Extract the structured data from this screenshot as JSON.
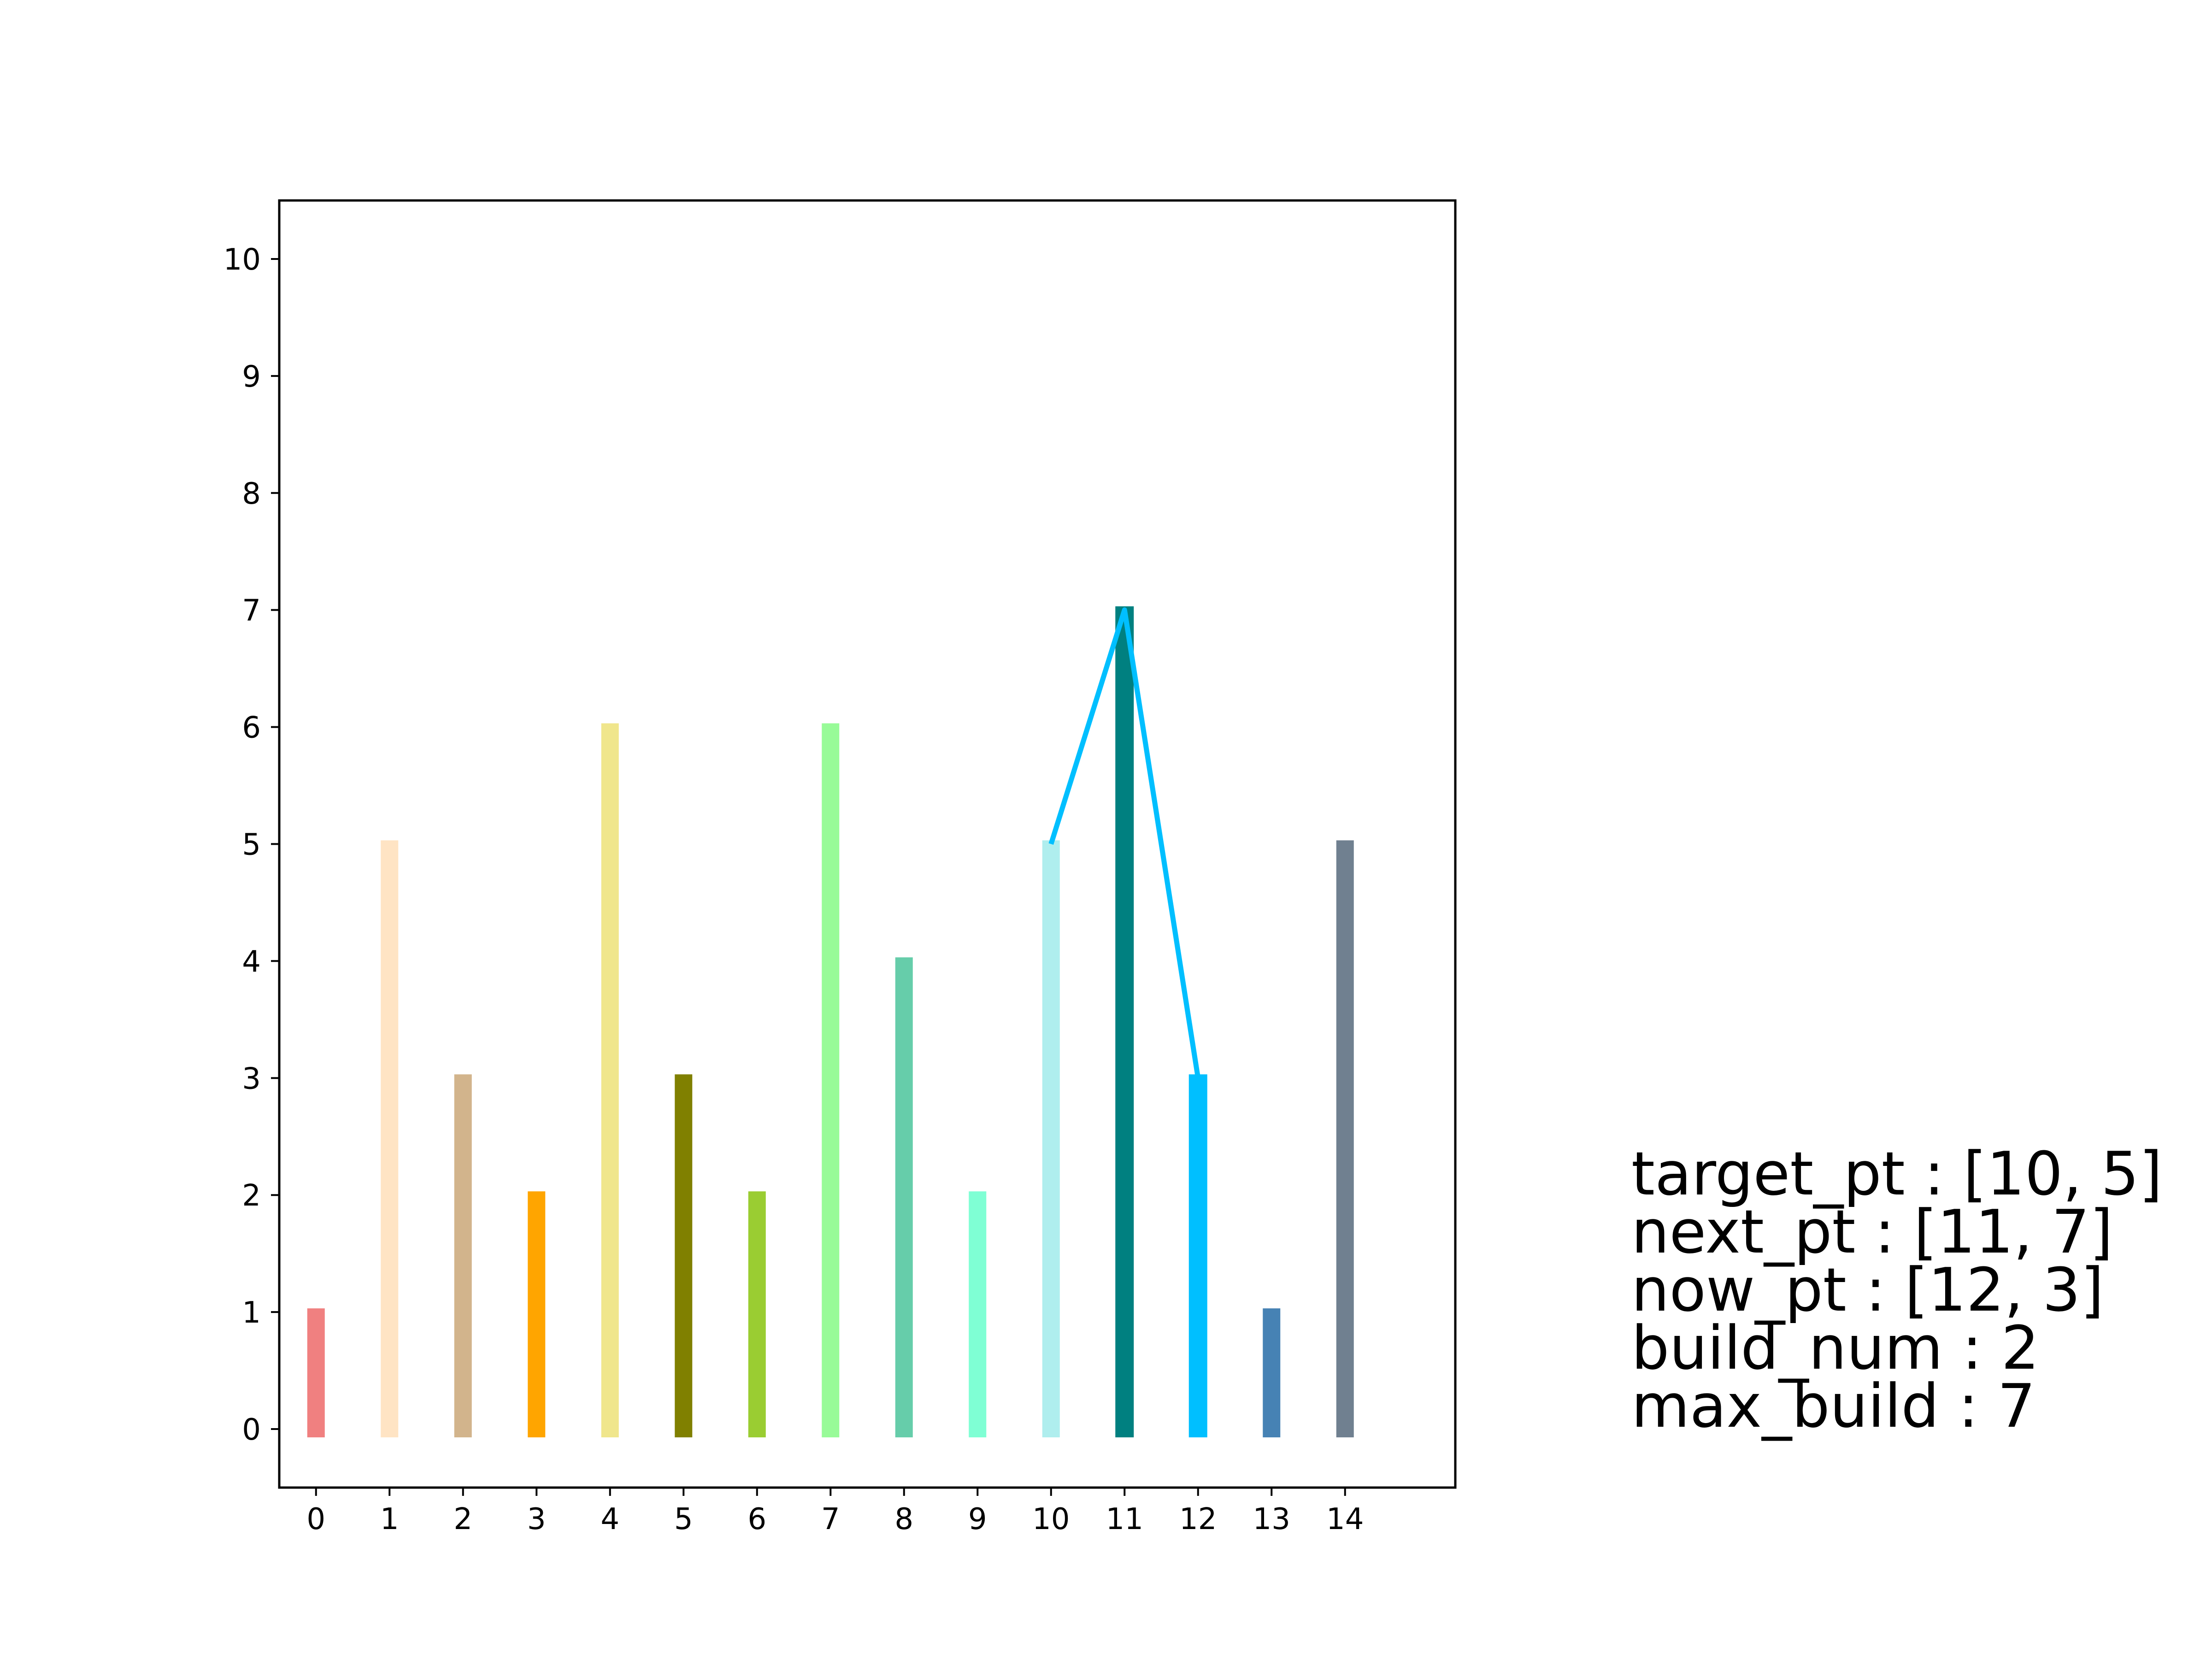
{
  "chart_data": {
    "type": "bar",
    "title": "",
    "xlabel": "",
    "ylabel": "",
    "categories": [
      "0",
      "1",
      "2",
      "3",
      "4",
      "5",
      "6",
      "7",
      "8",
      "9",
      "10",
      "11",
      "12",
      "13",
      "14"
    ],
    "values": [
      1,
      5,
      3,
      2,
      6,
      3,
      2,
      6,
      4,
      2,
      5,
      7,
      3,
      1,
      5
    ],
    "bar_colors": [
      "#f08080",
      "#ffe4c4",
      "#d2b48c",
      "#ffa500",
      "#f0e68c",
      "#808000",
      "#9acd32",
      "#98fb98",
      "#66cdaa",
      "#7fffd4",
      "#afeeee",
      "#008080",
      "#00bfff",
      "#4682b4",
      "#708090"
    ],
    "emphasized_bars": [
      11,
      12
    ],
    "line": {
      "color": "#00bfff",
      "points": [
        [
          10,
          5
        ],
        [
          11,
          7
        ],
        [
          12,
          3
        ]
      ]
    },
    "xlim": [
      -0.5,
      15.5
    ],
    "ylim": [
      -0.5,
      10.5
    ],
    "xticks": [
      "0",
      "1",
      "2",
      "3",
      "4",
      "5",
      "6",
      "7",
      "8",
      "9",
      "10",
      "11",
      "12",
      "13",
      "14"
    ],
    "yticks": [
      "0",
      "1",
      "2",
      "3",
      "4",
      "5",
      "6",
      "7",
      "8",
      "9",
      "10"
    ],
    "grid": false,
    "legend": "none"
  },
  "info_panel": {
    "target_pt": "target_pt : [10, 5]",
    "next_pt": "next_pt : [11, 7]",
    "now_pt": "now_pt : [12, 3]",
    "build_num": "build_num : 2",
    "max_build": "max_build : 7"
  }
}
